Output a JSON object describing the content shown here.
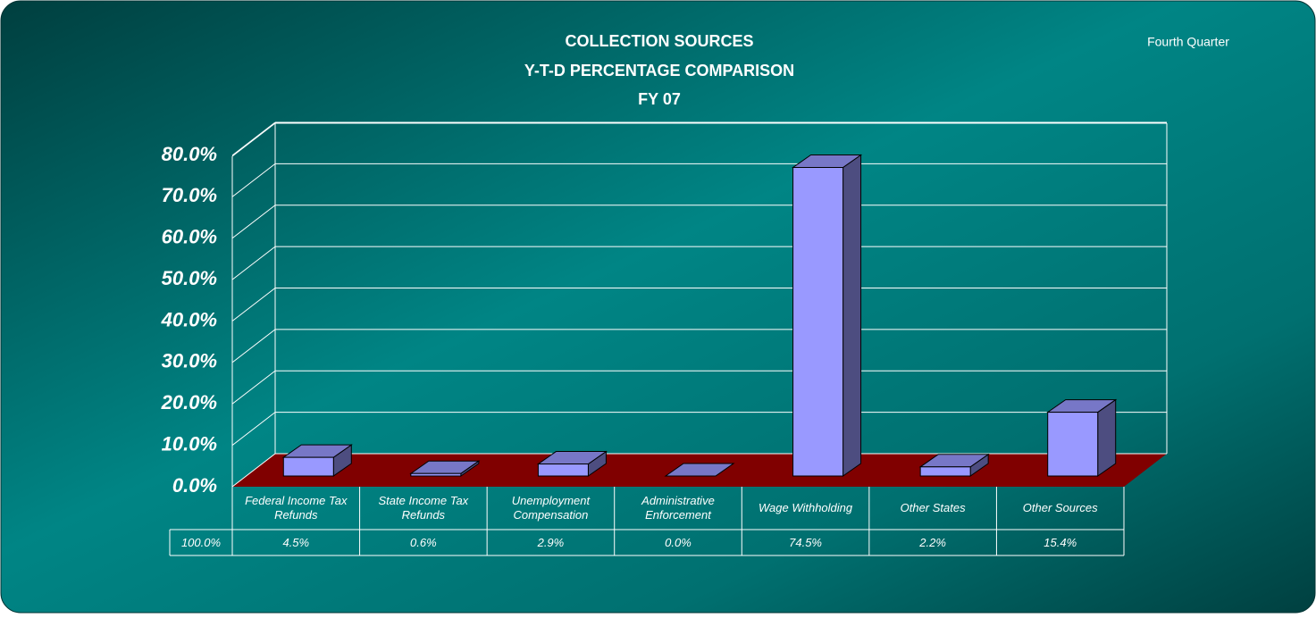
{
  "chart_data": {
    "type": "bar3d",
    "title": [
      "COLLECTION SOURCES",
      "Y-T-D PERCENTAGE COMPARISON",
      "FY 07"
    ],
    "subtitle": "Fourth Quarter",
    "categories": [
      "Federal Income Tax Refunds",
      "State Income Tax Refunds",
      "Unemployment Compensation",
      "Administrative Enforcement",
      "Wage Withholding",
      "Other States",
      "Other Sources"
    ],
    "values": [
      4.5,
      0.6,
      2.9,
      0.0,
      74.5,
      2.2,
      15.4
    ],
    "value_labels": [
      "4.5%",
      "0.6%",
      "2.9%",
      "0.0%",
      "74.5%",
      "2.2%",
      "15.4%"
    ],
    "total": {
      "value": 100,
      "label": "100.0%"
    },
    "color": "#9999ff",
    "floor_color": "#800000",
    "ylim": [
      0,
      80
    ],
    "yticks": [
      {
        "value": 0,
        "label": "0.0%"
      },
      {
        "value": 10,
        "label": "10.0%"
      },
      {
        "value": 20,
        "label": "20.0%"
      },
      {
        "value": 30,
        "label": "30.0%"
      },
      {
        "value": 40,
        "label": "40.0%"
      },
      {
        "value": 50,
        "label": "50.0%"
      },
      {
        "value": 60,
        "label": "60.0%"
      },
      {
        "value": 70,
        "label": "70.0%"
      },
      {
        "value": 80,
        "label": "80.0%"
      }
    ],
    "grid": true
  }
}
